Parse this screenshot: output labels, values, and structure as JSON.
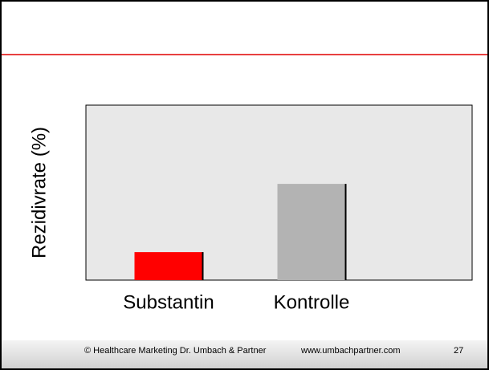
{
  "chart_data": {
    "type": "bar",
    "y_label": "Rezidivrate (%)",
    "categories": [
      "Substantin",
      "Kontrolle"
    ],
    "values": [
      16,
      55
    ],
    "colors": [
      "#ff0000",
      "#b3b3b3"
    ],
    "ylim": [
      0,
      100
    ]
  },
  "footer": {
    "copyright": "© Healthcare Marketing Dr. Umbach & Partner",
    "url": "www.umbachpartner.com",
    "page": "27"
  }
}
